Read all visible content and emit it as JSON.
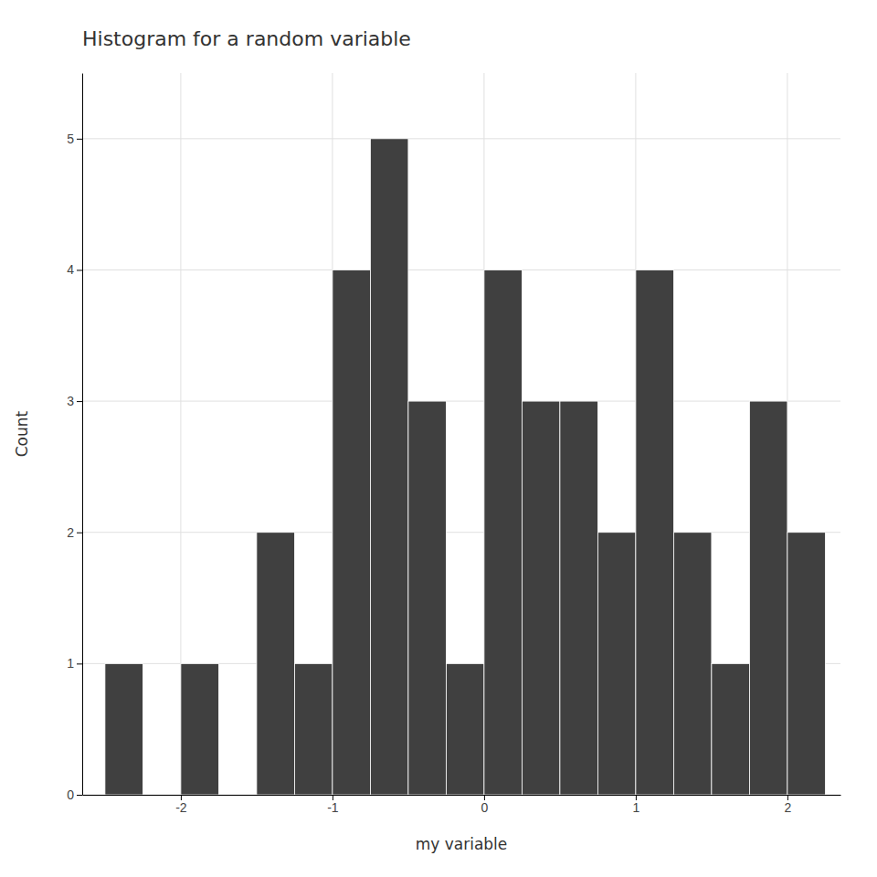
{
  "chart_data": {
    "type": "histogram",
    "title": "Histogram for a random variable",
    "xlabel": "my variable",
    "ylabel": "Count",
    "bins": [
      -2.5,
      -2.25,
      -2.0,
      -1.75,
      -1.5,
      -1.25,
      -1.0,
      -0.75,
      -0.5,
      -0.25,
      0.0,
      0.25,
      0.5,
      0.75,
      1.0,
      1.25,
      1.5,
      1.75,
      2.0,
      2.25
    ],
    "values": [
      1,
      0,
      1,
      0,
      2,
      1,
      4,
      5,
      3,
      1,
      4,
      3,
      3,
      2,
      4,
      2,
      1,
      3,
      2
    ],
    "color": "#404040",
    "xlim": [
      -2.65,
      2.35
    ],
    "ylim": [
      0,
      5.5
    ],
    "xticks": [
      -2,
      -1,
      0,
      1,
      2
    ],
    "yticks": [
      0,
      1,
      2,
      3,
      4,
      5
    ],
    "grid": true
  }
}
